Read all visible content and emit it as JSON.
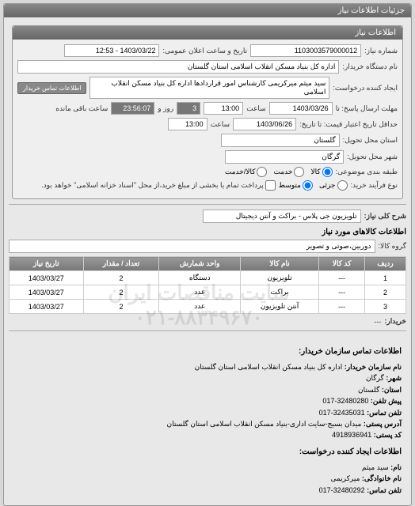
{
  "header": {
    "title": "جزئیات اطلاعات نیاز"
  },
  "need_info": {
    "panel_title": "اطلاعات نیاز",
    "number_label": "شماره نیاز:",
    "number_value": "1103003579000012",
    "announce_label": "تاریخ و ساعت اعلان عمومی:",
    "announce_value": "1403/03/22 - 12:53",
    "buyer_org_label": "نام دستگاه خریدار:",
    "buyer_org_value": "اداره کل بنیاد مسکن انقلاب اسلامی استان گلستان",
    "requester_label": "ایجاد کننده درخواست:",
    "requester_value": "سید میثم میرکریمی کارشناس امور قراردادها اداره کل بنیاد مسکن انقلاب اسلامی",
    "contact_btn": "اطلاعات تماس خریدار",
    "response_deadline_label": "مهلت ارسال پاسخ: تا",
    "response_deadline_date": "1403/03/26",
    "response_deadline_time_label": "ساعت",
    "response_deadline_time": "13:00",
    "days_label": "روز و",
    "days_value": "3",
    "remaining_label": "ساعت باقی مانده",
    "remaining_value": "23:56:07",
    "validity_label": "حداقل تاریخ اعتبار قیمت: تا تاریخ:",
    "validity_date": "1403/06/26",
    "validity_time_label": "ساعت",
    "validity_time": "13:00",
    "delivery_province_label": "استان محل تحویل:",
    "delivery_province_value": "گلستان",
    "delivery_city_label": "شهر محل تحویل:",
    "delivery_city_value": "گرگان",
    "budget_class_label": "طبقه بندی موضوعی:",
    "budget_options": [
      "کالا",
      "خدمت",
      "کالا/خدمت"
    ],
    "budget_selected": 0,
    "purchase_type_label": "نوع فرآیند خرید:",
    "purchase_options": [
      "جزئی",
      "متوسط"
    ],
    "purchase_selected": 1,
    "purchase_note": "پرداخت تمام یا بخشی از مبلغ خرید،از محل \"اسناد خزانه اسلامی\" خواهد بود.",
    "purchase_chk": false
  },
  "description": {
    "label": "شرح کلی نیاز:",
    "value": "تلویزیون جی پلاس - براکت و آنتن دیجیتال"
  },
  "goods": {
    "title": "اطلاعات کالاهای مورد نیاز",
    "group_label": "گروه کالا:",
    "group_value": "دوربین،صوتی و تصویر",
    "columns": [
      "ردیف",
      "کد کالا",
      "نام کالا",
      "واحد شمارش",
      "تعداد / مقدار",
      "تاریخ نیاز"
    ],
    "rows": [
      [
        "1",
        "---",
        "تلویزیون",
        "دستگاه",
        "2",
        "1403/03/27"
      ],
      [
        "2",
        "---",
        "براکت",
        "عدد",
        "2",
        "1403/03/27"
      ],
      [
        "3",
        "---",
        "آنتن تلویزیون",
        "عدد",
        "2",
        "1403/03/27"
      ]
    ],
    "buyer_label": "خریدار:",
    "buyer_value": "---"
  },
  "watermark": {
    "line1": "سایت مناقصات ایران",
    "line2": "۰۲۱-۸۸۳۴۹۶۷۰"
  },
  "contact": {
    "title": "اطلاعات تماس سازمان خریدار:",
    "org_label": "نام سازمان خریدار:",
    "org_value": "اداره کل بنیاد مسکن انقلاب اسلامی استان گلستان",
    "city_label": "شهر:",
    "city_value": "گرگان",
    "province_label": "استان:",
    "province_value": "گلستان",
    "phone_label": "پیش تلفن:",
    "phone_value": "32480280-017",
    "phone2_label": "تلفن تماس:",
    "phone2_value": "32435031-017",
    "postal_addr_label": "آدرس پستی:",
    "postal_addr_value": "میدان بسیج-سایت اداری-بنیاد مسکن انقلاب اسلامی استان گلستان",
    "postal_code_label": "کد پستی:",
    "postal_code_value": "4918936941",
    "req_creator_title": "اطلاعات ایجاد کننده درخواست:",
    "fname_label": "نام:",
    "fname_value": "سید میثم",
    "lname_label": "نام خانوادگی:",
    "lname_value": "میرکریمی",
    "req_phone_label": "تلفن تماس:",
    "req_phone_value": "32480292-017"
  }
}
